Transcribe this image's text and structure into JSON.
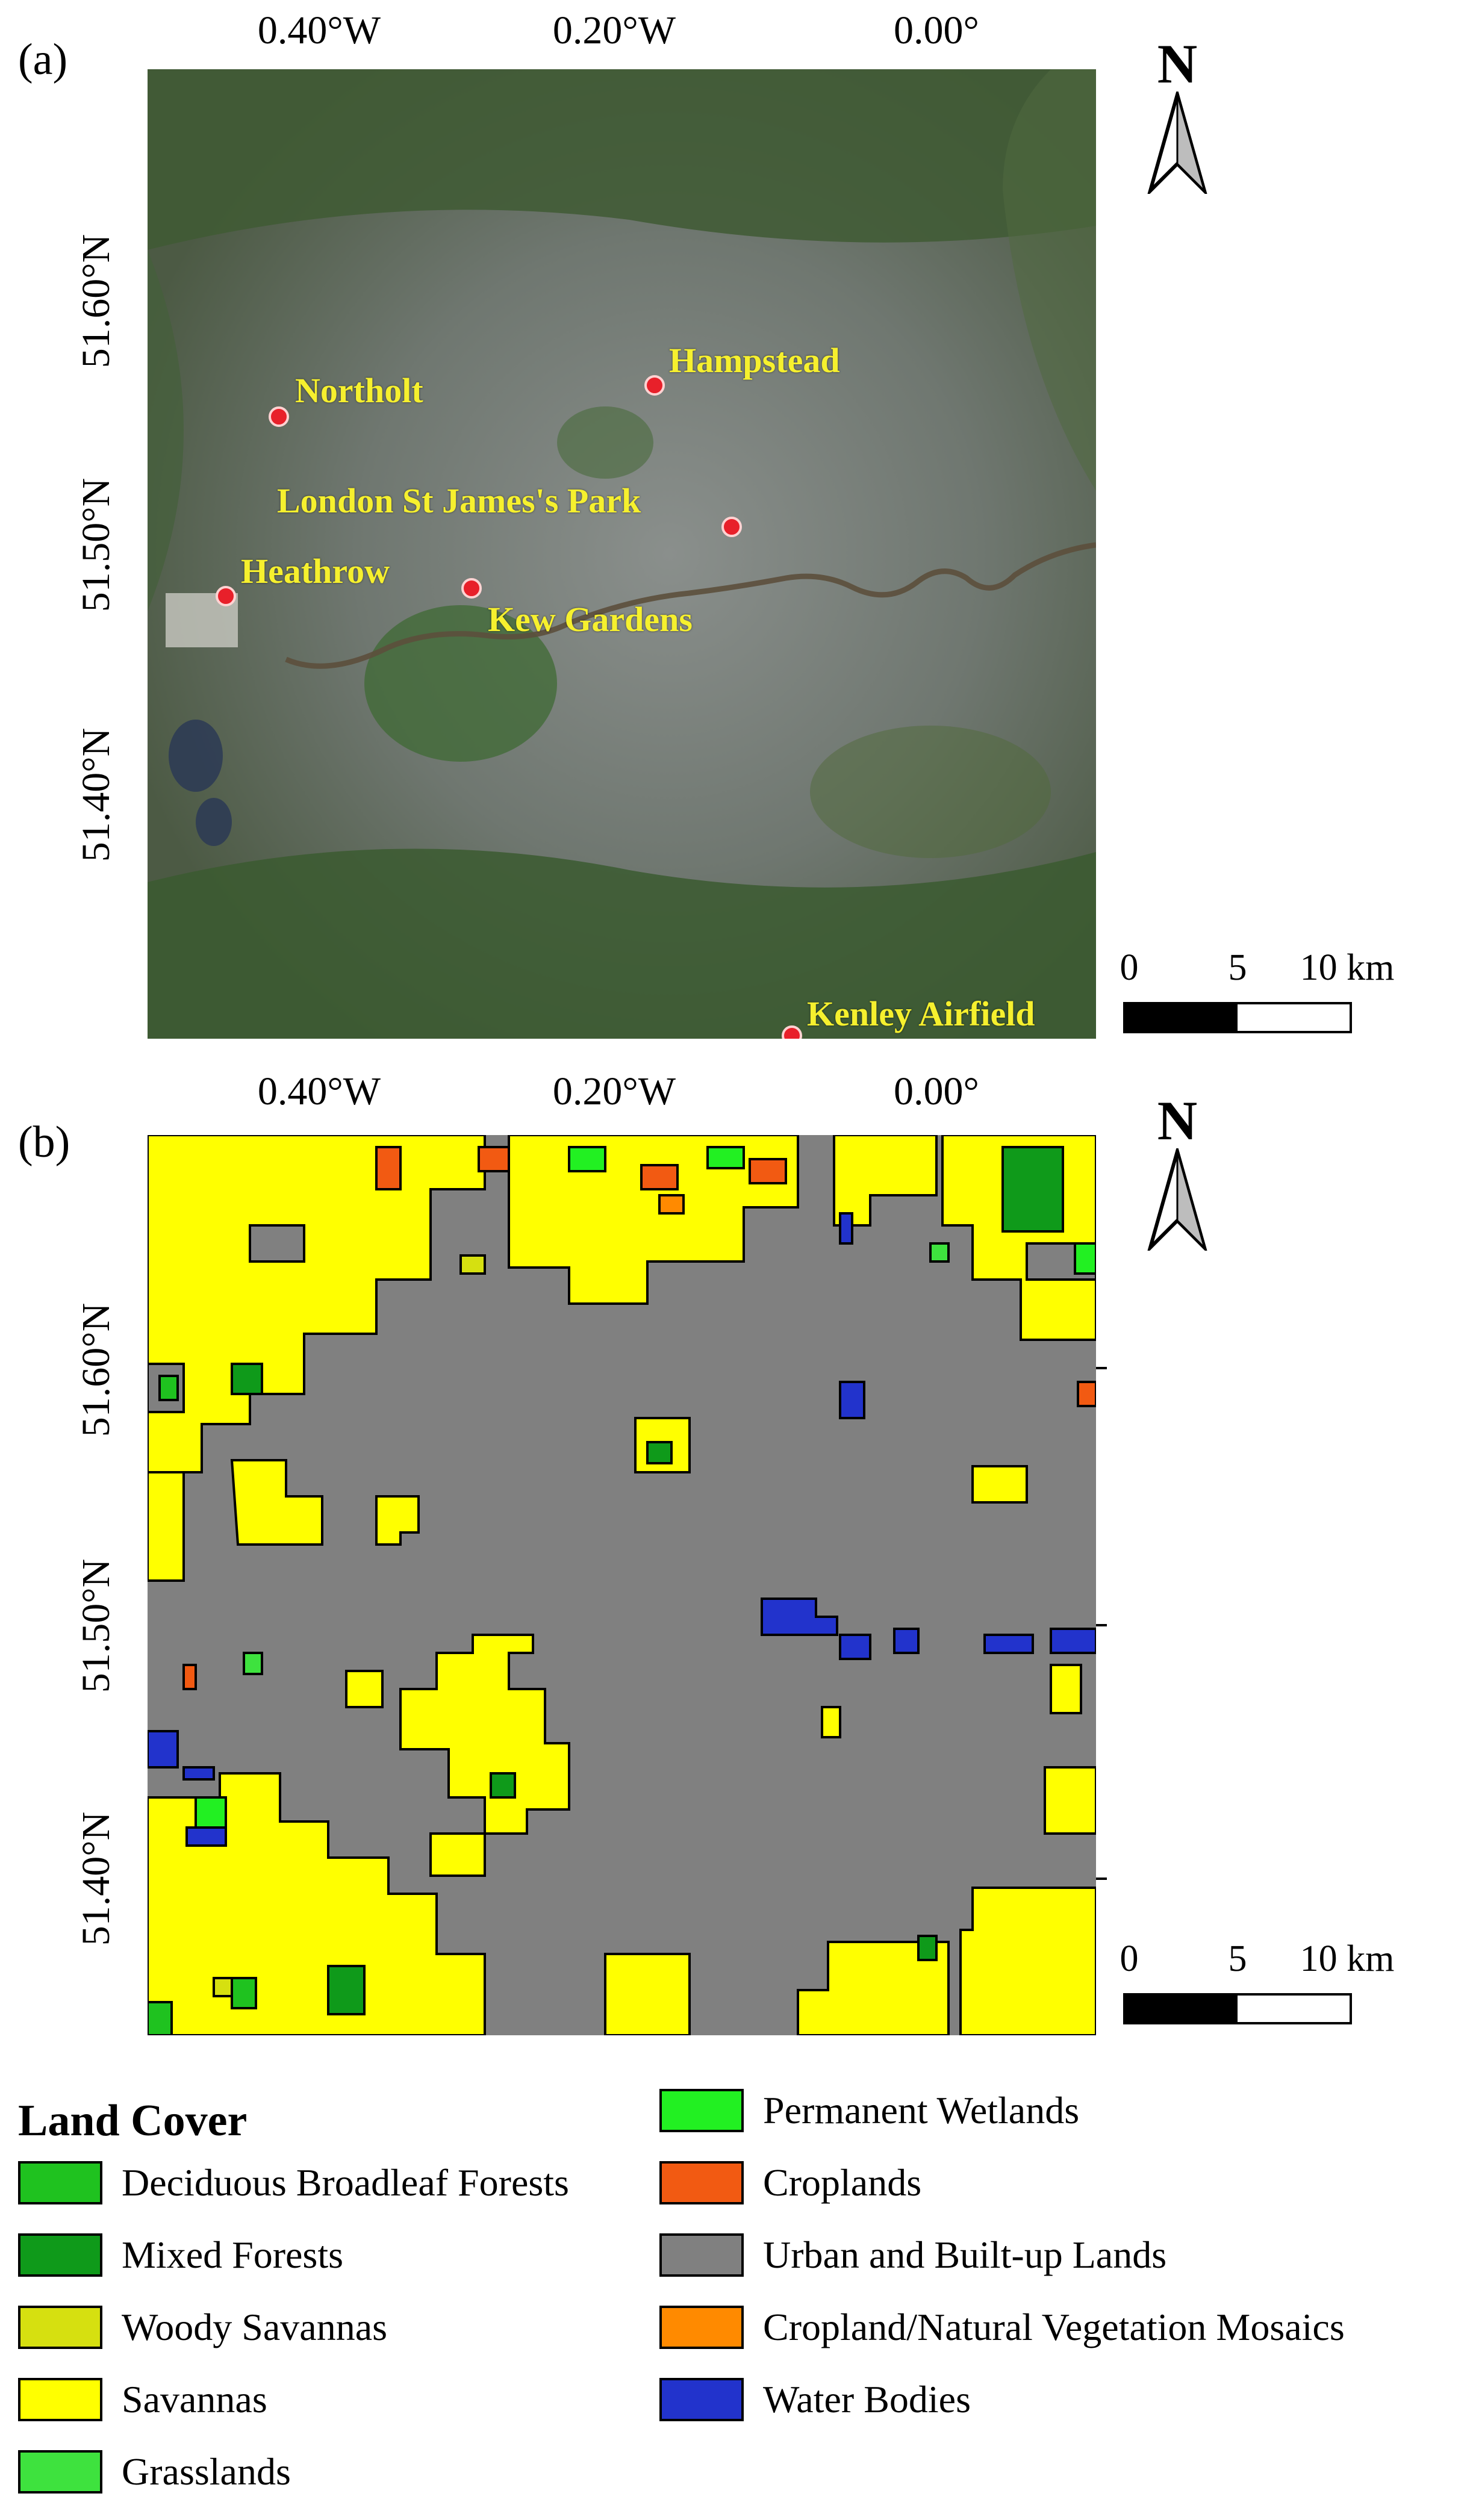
{
  "panel_a": {
    "letter": "(a)",
    "x_labels": [
      "0.40°W",
      "0.20°W",
      "0.00°"
    ],
    "y_labels": [
      "51.60°N",
      "51.50°N",
      "51.40°N"
    ],
    "north": "N",
    "scale": {
      "labels": [
        "0",
        "5",
        "10 km"
      ]
    },
    "stations": [
      {
        "name": "Hampstead"
      },
      {
        "name": "Northolt"
      },
      {
        "name": "London St James's Park"
      },
      {
        "name": "Heathrow"
      },
      {
        "name": "Kew Gardens"
      },
      {
        "name": "Kenley Airfield"
      }
    ]
  },
  "panel_b": {
    "letter": "(b)",
    "x_labels": [
      "0.40°W",
      "0.20°W",
      "0.00°"
    ],
    "y_labels": [
      "51.60°N",
      "51.50°N",
      "51.40°N"
    ],
    "north": "N",
    "scale": {
      "labels": [
        "0",
        "5",
        "10 km"
      ]
    }
  },
  "legend": {
    "title": "Land Cover",
    "items": [
      {
        "label": "Deciduous Broadleaf Forests",
        "color": "#1fc21f"
      },
      {
        "label": "Mixed Forests",
        "color": "#0f9a1a"
      },
      {
        "label": "Woody Savannas",
        "color": "#d6e010"
      },
      {
        "label": "Savannas",
        "color": "#ffff00"
      },
      {
        "label": "Grasslands",
        "color": "#3ee23e"
      },
      {
        "label": "Permanent Wetlands",
        "color": "#22f022"
      },
      {
        "label": "Croplands",
        "color": "#f25a12"
      },
      {
        "label": "Urban and Built-up Lands",
        "color": "#808080"
      },
      {
        "label": "Cropland/Natural Vegetation Mosaics",
        "color": "#ff8a00"
      },
      {
        "label": "Water Bodies",
        "color": "#2233cc"
      }
    ]
  }
}
